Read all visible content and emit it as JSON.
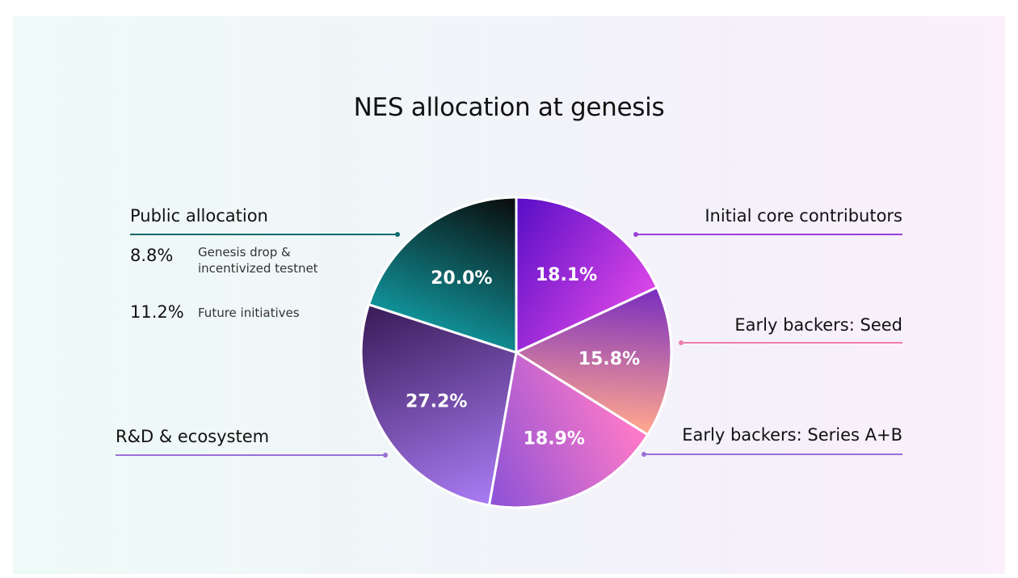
{
  "title": "NES allocation at genesis",
  "chart_data": {
    "type": "pie",
    "title": "NES allocation at genesis",
    "slices": [
      {
        "label": "Initial core contributors",
        "value": 18.1,
        "display": "18.1%",
        "colors": [
          "#5a0fc7",
          "#d845e6"
        ]
      },
      {
        "label": "Early backers: Seed",
        "value": 15.8,
        "display": "15.8%",
        "colors": [
          "#7b2fbe",
          "#ffa68f"
        ]
      },
      {
        "label": "Early backers: Series A+B",
        "value": 18.9,
        "display": "18.9%",
        "colors": [
          "#ff7ac8",
          "#8e52d6"
        ]
      },
      {
        "label": "R&D & ecosystem",
        "value": 27.2,
        "display": "27.2%",
        "colors": [
          "#3d1f5e",
          "#a87af2"
        ]
      },
      {
        "label": "Public allocation",
        "value": 20.0,
        "display": "20.0%",
        "colors": [
          "#0a0a0a",
          "#119ea5"
        ]
      }
    ],
    "start_angle_deg": 0,
    "direction": "clockwise"
  },
  "public_allocation": {
    "label": "Public allocation",
    "breakdown": [
      {
        "pct": "8.8%",
        "desc_line1": "Genesis drop &",
        "desc_line2": "incentivized testnet"
      },
      {
        "pct": "11.2%",
        "desc_line1": "Future initiatives",
        "desc_line2": ""
      }
    ]
  },
  "labels": {
    "core": "Initial core contributors",
    "seed": "Early backers: Seed",
    "series": "Early backers: Series A+B",
    "rnd": "R&D & ecosystem"
  },
  "colors": {
    "public_leader": "#0f6b6b",
    "core_leader": "#9a3fd6",
    "seed_leader": "#ef7fa8",
    "series_leader": "#9a6fd6",
    "rnd_leader": "#9a6fd6"
  }
}
